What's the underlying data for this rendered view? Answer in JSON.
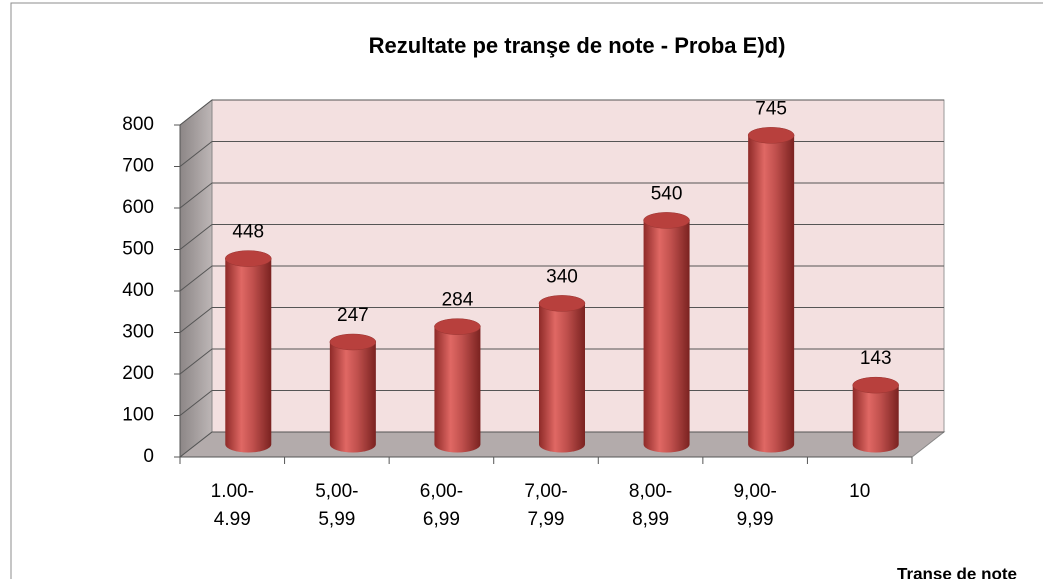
{
  "chart_data": {
    "type": "bar",
    "title": "Rezultate pe tranşe de note - Proba E)d)",
    "x_label": "Tranşe de note",
    "categories": [
      "1.00-\n4.99",
      "5,00-\n5,99",
      "6,00-\n6,99",
      "7,00-\n7,99",
      "8,00-\n8,99",
      "9,00-\n9,99",
      "10"
    ],
    "values": [
      448,
      247,
      284,
      340,
      540,
      745,
      143
    ],
    "color": "#c0504d",
    "ylim": [
      0,
      800
    ],
    "yticks": [
      0,
      100,
      200,
      300,
      400,
      500,
      600,
      700,
      800
    ],
    "grid": true
  }
}
